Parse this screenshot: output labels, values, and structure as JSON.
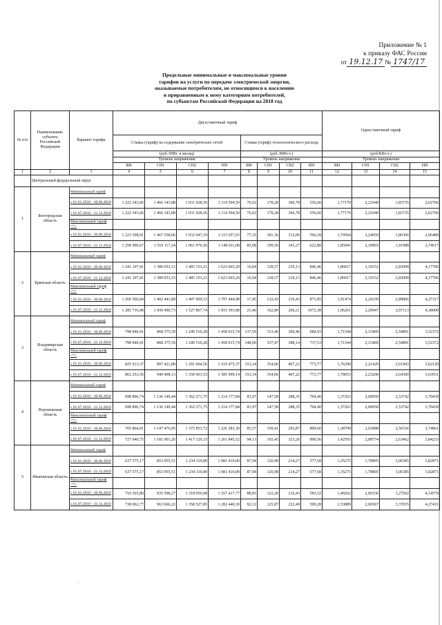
{
  "annex": {
    "line1": "Приложение № 1",
    "line2": "к приказу ФАС России",
    "from_label": "от",
    "date": "19.12.17",
    "no_label": "№",
    "number": "1747/17"
  },
  "title": [
    "Предельные минимальные и максимальные уровни",
    "тарифов на услуги по передаче электрической энергии,",
    "оказываемые потребителям, не относящимся к населению",
    "и приравненным к нему категориям потребителей,",
    "по субъектам Российской Федерации на 2018 год"
  ],
  "header": {
    "num": "№ п/п",
    "subject": "Наименование субъекта Российской Федерации",
    "variant": "Вариант тарифа",
    "two_rate": "Двухставочный тариф",
    "maintenance": "Ставка (тариф) на содержание электрических сетей",
    "losses": "Ставка (тариф) технологического расхода",
    "single_rate": "Одноставочный тариф",
    "unit_maint": "(руб./МВт. в месяц)",
    "unit_loss": "(руб./МВт.ч.)",
    "unit_single": "(руб/КВт.ч.)",
    "voltage": "Уровень напряжения",
    "levels": [
      "ВН",
      "СН1",
      "СН2",
      "НН"
    ],
    "col_numbers": [
      "1",
      "2",
      "3",
      "4",
      "5",
      "6",
      "7",
      "8",
      "9",
      "10",
      "11",
      "12",
      "13",
      "14",
      "15"
    ]
  },
  "district": "Центральный федеральный округ",
  "min_label": "Минимальный тариф",
  "max_label": "Максимальный тариф <*>",
  "periods": [
    "с 01.01.2018 - 30.06.2018",
    "с 01.07.2018 - 31.12.2018"
  ],
  "regions": [
    {
      "num": "1",
      "name": "Белгородская область",
      "min": [
        [
          "1 222 343,66",
          "1 466 143,88",
          "1 031 028,56",
          "1 114 594,50",
          "76,02",
          "178,28",
          "306,78",
          "556,60",
          "1,77170",
          "2,21040",
          "1,83735",
          "2,62766"
        ],
        [
          "1 222 343,66",
          "1 466 143,88",
          "1 031 028,56",
          "1 114 594,50",
          "76,02",
          "178,28",
          "306,78",
          "556,60",
          "1,77170",
          "2,21040",
          "1,83735",
          "2,62766"
        ]
      ],
      "max": [
        [
          "1 223 508,91",
          "1 467 558,06",
          "1 032 047,19",
          "1 115 657,03",
          "77,33",
          "181,36",
          "312,06",
          "566,18",
          "1,79564",
          "2,24059",
          "1,86306",
          "2,66489"
        ],
        [
          "1 258 990,67",
          "1 510 117,24",
          "1 061 976,56",
          "1 148 011,08",
          "85,08",
          "199,50",
          "343,27",
          "622,80",
          "1,85041",
          "2,30893",
          "1,91988",
          "2,74617"
        ]
      ]
    },
    {
      "num": "2",
      "name": "Брянская область",
      "min": [
        [
          "1 241 107,41",
          "1 389 053,15",
          "1 485 153,21",
          "1 623 665,29",
          "16,94",
          "128,57",
          "210,13",
          "846,46",
          "1,86017",
          "2,19152",
          "2,83099",
          "4,17706"
        ],
        [
          "1 241 107,41",
          "1 389 053,15",
          "1 485 153,21",
          "1 623 665,29",
          "16,94",
          "128,57",
          "210,13",
          "846,46",
          "1,86017",
          "2,19152",
          "2,83099",
          "4,17706"
        ]
      ],
      "max": [
        [
          "1 260 506,84",
          "1 402 441,89",
          "1 497 909,53",
          "1 797 444,98",
          "17,45",
          "132,43",
          "216,43",
          "871,85",
          "1,91474",
          "2,24339",
          "2,89866",
          "4,27317"
        ],
        [
          "1 285 716,98",
          "1 430 490,73",
          "1 527 867,74",
          "1 833 393,88",
          "21,46",
          "162,89",
          "266,21",
          "1072,38",
          "1,96261",
          "2,29947",
          "2,97113",
          "4,38000"
        ]
      ]
    },
    {
      "num": "3",
      "name": "Владимирская область",
      "min": [
        [
          "798 840,41",
          "868 375,59",
          "1 249 510,28",
          "1 458 015,74",
          "137,50",
          "313,40",
          "360,46",
          "684,93",
          "1,71544",
          "2,15469",
          "2,54891",
          "3,52372"
        ],
        [
          "798 840,41",
          "868 375,59",
          "1 249 510,28",
          "1 458 015,74",
          "148,06",
          "337,47",
          "388,14",
          "737,53",
          "1,71544",
          "2,15469",
          "2,54891",
          "3,52372"
        ]
      ],
      "max": [
        [
          "825 913,37",
          "897 421,88",
          "1 291 064,56",
          "1 510 475,37",
          "153,34",
          "354,06",
          "407,22",
          "773,77",
          "1,76290",
          "2,21429",
          "2,61943",
          "3,62120"
        ],
        [
          "862 253,56",
          "940 498,13",
          "1 350 453,53",
          "1 585 999,14",
          "153,34",
          "354,06",
          "407,22",
          "773,77",
          "1,78053",
          "2,23200",
          "2,64300",
          "3,63931"
        ]
      ]
    },
    {
      "num": "4",
      "name": "Воронежская область",
      "min": [
        [
          "698 896,74",
          "1 136 149,44",
          "1 362 271,75",
          "1 214 177,84",
          "83,97",
          "147,58",
          "288,35",
          "794,40",
          "1,37263",
          "2,00950",
          "2,53742",
          "3,70439"
        ],
        [
          "698 896,74",
          "1 136 149,44",
          "1 362 271,75",
          "1 214 177,84",
          "83,97",
          "147,58",
          "288,35",
          "794,40",
          "1,37263",
          "2,00950",
          "2,53742",
          "3,70439"
        ]
      ],
      "max": [
        [
          "705 864,81",
          "1 147 476,95",
          "1 375 853,72",
          "1 226 283,30",
          "85,57",
          "150,41",
          "293,87",
          "809,60",
          "1,38709",
          "2,03088",
          "2,56536",
          "3,74861"
        ],
        [
          "727 040,75",
          "1 181 901,26",
          "1 417 129,33",
          "1 261 845,52",
          "94,13",
          "165,45",
          "323,26",
          "890,56",
          "1,42593",
          "2,08774",
          "2,63462",
          "3,84233"
        ]
      ]
    },
    {
      "num": "5",
      "name": "Ивановская область",
      "min": [
        [
          "637 575,17",
          "853 955,51",
          "1 234 119,80",
          "1 081 419,00",
          "87,94",
          "120,98",
          "214,27",
          "577,68",
          "1,35275",
          "1,78895",
          "3,06385",
          "3,82871"
        ],
        [
          "637 575,17",
          "853 955,51",
          "1 234 119,80",
          "1 081 419,00",
          "87,94",
          "120,98",
          "214,27",
          "577,68",
          "1,35275",
          "1,78895",
          "3,06385",
          "3,82871"
        ]
      ],
      "max": [
        [
          "716 565,80",
          "935 598,27",
          "1 318 959,08",
          "1 167 417,77",
          "88,83",
          "122,20",
          "216,43",
          "583,52",
          "1,49262",
          "2,00336",
          "3,27502",
          "4,14579"
        ],
        [
          "738 062,77",
          "963 666,22",
          "1 358 527,85",
          "1 202 440,30",
          "92,12",
          "125,87",
          "222,49",
          "599,28",
          "1,53889",
          "2,06567",
          "3,37655",
          "4,27431"
        ]
      ]
    }
  ]
}
